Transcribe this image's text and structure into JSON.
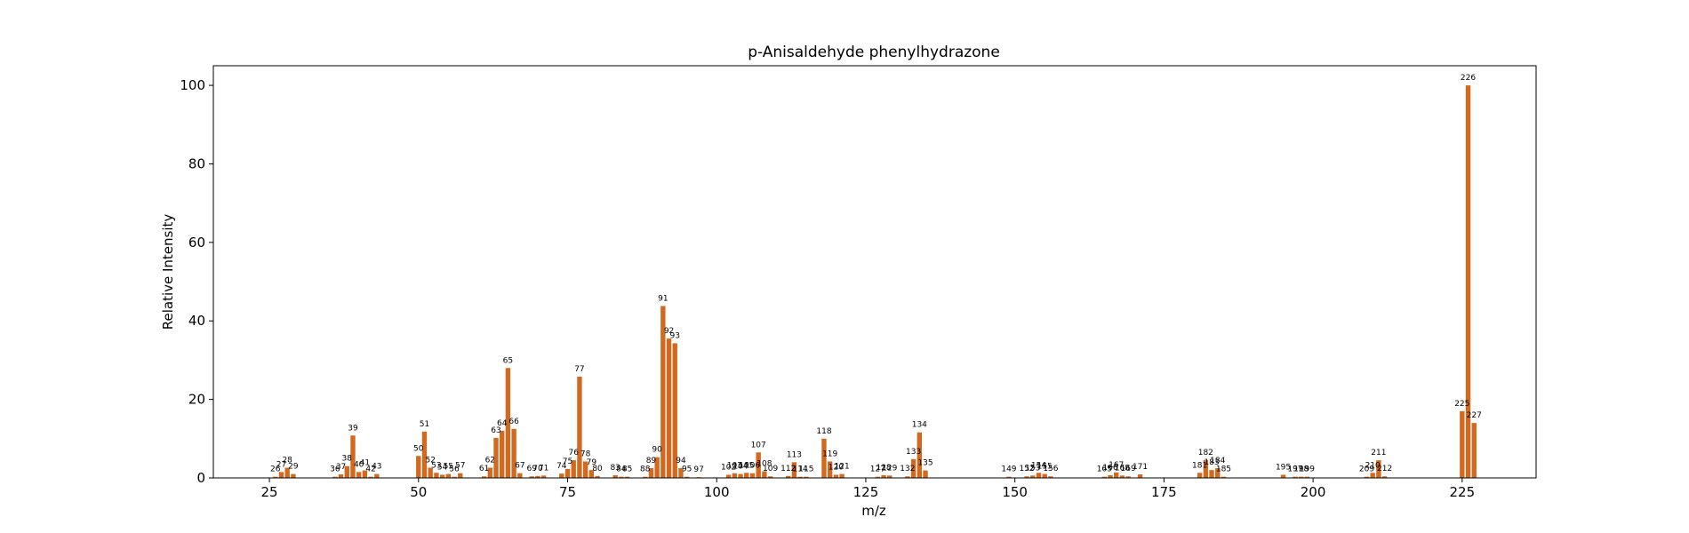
{
  "chart_data": {
    "type": "bar",
    "title": "p-Anisaldehyde phenylhydrazone",
    "xlabel": "m/z",
    "ylabel": "Relative Intensity",
    "xlim": [
      15.6,
      237.4
    ],
    "ylim": [
      0,
      105
    ],
    "xticks": [
      25,
      50,
      75,
      100,
      125,
      150,
      175,
      200,
      225
    ],
    "yticks": [
      0,
      20,
      40,
      60,
      80,
      100
    ],
    "bar_color": "#d2691e",
    "grid": false,
    "points": [
      {
        "x": 26,
        "y": 0.3,
        "label": "26"
      },
      {
        "x": 27,
        "y": 1.5,
        "label": "27"
      },
      {
        "x": 28,
        "y": 2.6,
        "label": "28"
      },
      {
        "x": 29,
        "y": 1.0,
        "label": "29"
      },
      {
        "x": 36,
        "y": 0.3,
        "label": "36"
      },
      {
        "x": 37,
        "y": 0.9,
        "label": "37"
      },
      {
        "x": 38,
        "y": 3.0,
        "label": "38"
      },
      {
        "x": 39,
        "y": 10.8,
        "label": "39"
      },
      {
        "x": 40,
        "y": 1.5,
        "label": "40"
      },
      {
        "x": 41,
        "y": 1.9,
        "label": "41"
      },
      {
        "x": 42,
        "y": 0.3,
        "label": "42"
      },
      {
        "x": 43,
        "y": 1.0,
        "label": "43"
      },
      {
        "x": 50,
        "y": 5.6,
        "label": "50"
      },
      {
        "x": 51,
        "y": 11.8,
        "label": "51"
      },
      {
        "x": 52,
        "y": 2.6,
        "label": "52"
      },
      {
        "x": 53,
        "y": 1.3,
        "label": "53"
      },
      {
        "x": 54,
        "y": 0.8,
        "label": "54"
      },
      {
        "x": 55,
        "y": 1.0,
        "label": "55"
      },
      {
        "x": 56,
        "y": 0.3,
        "label": "56"
      },
      {
        "x": 57,
        "y": 1.2,
        "label": "57"
      },
      {
        "x": 61,
        "y": 0.4,
        "label": "61"
      },
      {
        "x": 62,
        "y": 2.6,
        "label": "62"
      },
      {
        "x": 63,
        "y": 10.2,
        "label": "63"
      },
      {
        "x": 64,
        "y": 12.0,
        "label": "64"
      },
      {
        "x": 65,
        "y": 28.0,
        "label": "65"
      },
      {
        "x": 66,
        "y": 12.5,
        "label": "66"
      },
      {
        "x": 67,
        "y": 1.2,
        "label": "67"
      },
      {
        "x": 69,
        "y": 0.4,
        "label": "69"
      },
      {
        "x": 70,
        "y": 0.5,
        "label": "70"
      },
      {
        "x": 71,
        "y": 0.6,
        "label": "71"
      },
      {
        "x": 74,
        "y": 1.1,
        "label": "74"
      },
      {
        "x": 75,
        "y": 2.3,
        "label": "75"
      },
      {
        "x": 76,
        "y": 4.5,
        "label": "76"
      },
      {
        "x": 77,
        "y": 25.8,
        "label": "77"
      },
      {
        "x": 78,
        "y": 4.2,
        "label": "78"
      },
      {
        "x": 79,
        "y": 2.0,
        "label": "79"
      },
      {
        "x": 80,
        "y": 0.5,
        "label": "80"
      },
      {
        "x": 83,
        "y": 0.7,
        "label": "83"
      },
      {
        "x": 84,
        "y": 0.3,
        "label": "84"
      },
      {
        "x": 85,
        "y": 0.3,
        "label": "85"
      },
      {
        "x": 88,
        "y": 0.3,
        "label": "88"
      },
      {
        "x": 89,
        "y": 2.5,
        "label": "89"
      },
      {
        "x": 90,
        "y": 5.3,
        "label": "90"
      },
      {
        "x": 91,
        "y": 43.8,
        "label": "91"
      },
      {
        "x": 92,
        "y": 35.5,
        "label": "92"
      },
      {
        "x": 93,
        "y": 34.3,
        "label": "93"
      },
      {
        "x": 94,
        "y": 2.5,
        "label": "94"
      },
      {
        "x": 95,
        "y": 0.3,
        "label": "95"
      },
      {
        "x": 97,
        "y": 0.2,
        "label": "97"
      },
      {
        "x": 102,
        "y": 0.8,
        "label": "102"
      },
      {
        "x": 103,
        "y": 1.2,
        "label": "103"
      },
      {
        "x": 104,
        "y": 1.0,
        "label": "104"
      },
      {
        "x": 105,
        "y": 1.3,
        "label": "105"
      },
      {
        "x": 106,
        "y": 1.2,
        "label": "106"
      },
      {
        "x": 107,
        "y": 6.5,
        "label": "107"
      },
      {
        "x": 108,
        "y": 1.7,
        "label": "108"
      },
      {
        "x": 109,
        "y": 0.4,
        "label": "109"
      },
      {
        "x": 112,
        "y": 0.5,
        "label": "112"
      },
      {
        "x": 113,
        "y": 4.0,
        "label": "113"
      },
      {
        "x": 114,
        "y": 0.3,
        "label": "114"
      },
      {
        "x": 115,
        "y": 0.3,
        "label": "115"
      },
      {
        "x": 118,
        "y": 10.0,
        "label": "118"
      },
      {
        "x": 119,
        "y": 4.2,
        "label": "119"
      },
      {
        "x": 120,
        "y": 0.8,
        "label": "120"
      },
      {
        "x": 121,
        "y": 1.0,
        "label": "121"
      },
      {
        "x": 127,
        "y": 0.3,
        "label": "127"
      },
      {
        "x": 128,
        "y": 0.7,
        "label": "128"
      },
      {
        "x": 129,
        "y": 0.6,
        "label": "129"
      },
      {
        "x": 132,
        "y": 0.4,
        "label": "132"
      },
      {
        "x": 133,
        "y": 4.8,
        "label": "133"
      },
      {
        "x": 134,
        "y": 11.6,
        "label": "134"
      },
      {
        "x": 135,
        "y": 1.9,
        "label": "135"
      },
      {
        "x": 149,
        "y": 0.3,
        "label": "149"
      },
      {
        "x": 152,
        "y": 0.4,
        "label": "152"
      },
      {
        "x": 153,
        "y": 0.6,
        "label": "153"
      },
      {
        "x": 154,
        "y": 1.3,
        "label": "154"
      },
      {
        "x": 155,
        "y": 1.0,
        "label": "155"
      },
      {
        "x": 156,
        "y": 0.4,
        "label": "156"
      },
      {
        "x": 165,
        "y": 0.3,
        "label": "165"
      },
      {
        "x": 166,
        "y": 0.7,
        "label": "166"
      },
      {
        "x": 167,
        "y": 1.4,
        "label": "167"
      },
      {
        "x": 168,
        "y": 0.6,
        "label": "168"
      },
      {
        "x": 169,
        "y": 0.4,
        "label": "169"
      },
      {
        "x": 171,
        "y": 0.9,
        "label": "171"
      },
      {
        "x": 181,
        "y": 1.3,
        "label": "181"
      },
      {
        "x": 182,
        "y": 4.5,
        "label": "182"
      },
      {
        "x": 183,
        "y": 2.0,
        "label": "183"
      },
      {
        "x": 184,
        "y": 2.5,
        "label": "184"
      },
      {
        "x": 185,
        "y": 0.3,
        "label": "185"
      },
      {
        "x": 195,
        "y": 0.8,
        "label": "195"
      },
      {
        "x": 197,
        "y": 0.3,
        "label": "197"
      },
      {
        "x": 198,
        "y": 0.3,
        "label": "198"
      },
      {
        "x": 199,
        "y": 0.3,
        "label": "199"
      },
      {
        "x": 209,
        "y": 0.3,
        "label": "209"
      },
      {
        "x": 210,
        "y": 1.3,
        "label": "210"
      },
      {
        "x": 211,
        "y": 4.5,
        "label": "211"
      },
      {
        "x": 212,
        "y": 0.4,
        "label": "212"
      },
      {
        "x": 225,
        "y": 17.0,
        "label": "225"
      },
      {
        "x": 226,
        "y": 100.0,
        "label": "226"
      },
      {
        "x": 227,
        "y": 14.0,
        "label": "227"
      }
    ]
  }
}
